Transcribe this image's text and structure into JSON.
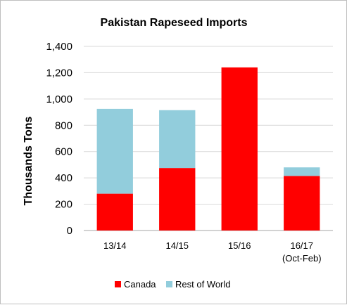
{
  "chart_data": {
    "type": "bar",
    "stacked": true,
    "title": "Pakistan Rapeseed Imports",
    "ylabel": "Thousands Tons",
    "xlabel": "",
    "ylim": [
      0,
      1400
    ],
    "yticks": [
      "0",
      "200",
      "400",
      "600",
      "800",
      "1,000",
      "1,200",
      "1,400"
    ],
    "grid": true,
    "legend_position": "bottom",
    "categories": [
      {
        "line1": "13/14",
        "line2": ""
      },
      {
        "line1": "14/15",
        "line2": ""
      },
      {
        "line1": "15/16",
        "line2": ""
      },
      {
        "line1": "16/17",
        "line2": "(Oct-Feb)"
      }
    ],
    "series": [
      {
        "name": "Canada",
        "color": "#ff0000",
        "values": [
          280,
          475,
          1240,
          415
        ]
      },
      {
        "name": "Rest of World",
        "color": "#92cddc",
        "values": [
          645,
          440,
          0,
          65
        ]
      }
    ]
  }
}
